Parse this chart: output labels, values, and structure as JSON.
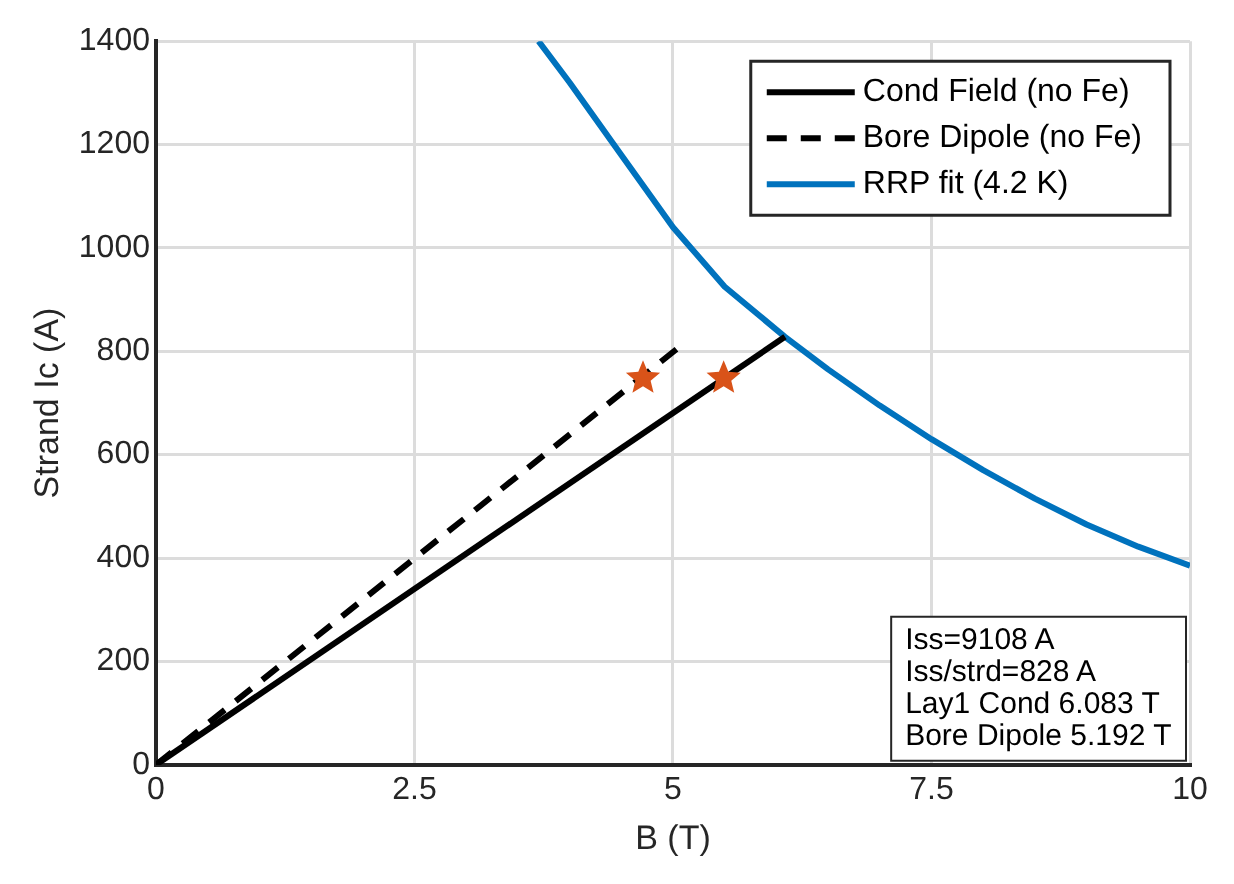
{
  "chart_data": {
    "type": "line",
    "xlabel": "B (T)",
    "ylabel": "Strand Ic (A)",
    "xlim": [
      0,
      10
    ],
    "xticks": [
      0,
      2.5,
      5,
      7.5,
      10
    ],
    "ylim": [
      0,
      1400
    ],
    "yticks": [
      0,
      200,
      400,
      600,
      800,
      1000,
      1200,
      1400
    ],
    "grid": true,
    "legend": "top right",
    "series": [
      {
        "name": "Cond Field (no Fe)",
        "color": "#000000",
        "line_style": "solid",
        "marker": "none",
        "x": [
          0,
          6.083
        ],
        "values": [
          0,
          828
        ]
      },
      {
        "name": "Bore Dipole (no Fe)",
        "color": "#000000",
        "line_style": "dashed",
        "marker": "none",
        "x": [
          0,
          5.04
        ],
        "values": [
          0,
          805
        ]
      },
      {
        "name": "RRP fit (4.2 K)",
        "color": "#0072bd",
        "line_style": "solid",
        "marker": "none",
        "x": [
          3.7,
          4,
          4.5,
          5,
          5.5,
          6.083,
          6.5,
          7,
          7.5,
          8,
          8.5,
          9,
          9.5,
          10
        ],
        "values": [
          1400,
          1320,
          1180,
          1040,
          925,
          828,
          765,
          695,
          630,
          570,
          515,
          465,
          422,
          385
        ]
      },
      {
        "color": "#d95319",
        "type": "scatter",
        "marker": "star",
        "x": [
          4.71,
          5.49
        ],
        "values": [
          748,
          748
        ]
      }
    ],
    "annotations": [
      "Iss=9108 A",
      "Iss/strd=828 A",
      "Lay1 Cond 6.083 T",
      "Bore Dipole 5.192 T"
    ]
  }
}
